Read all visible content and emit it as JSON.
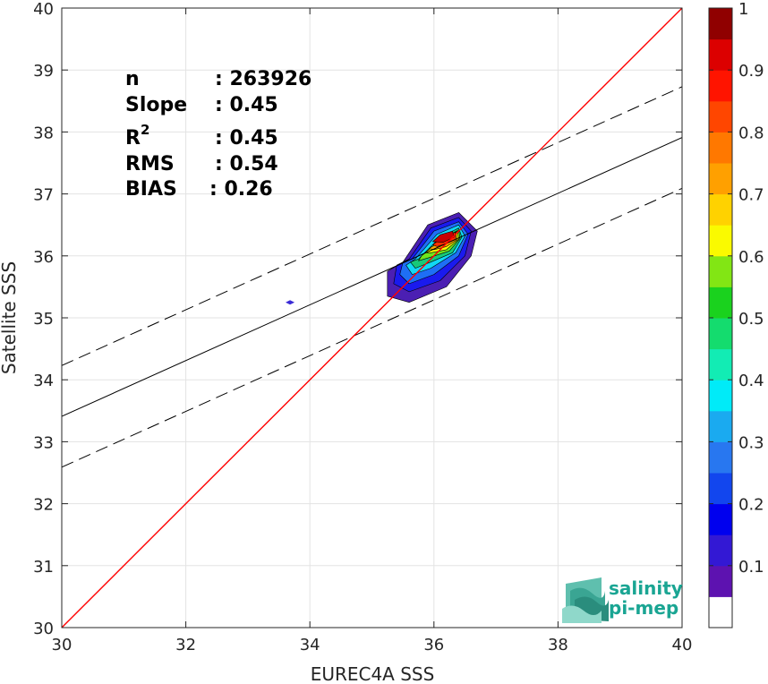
{
  "chart_data": {
    "type": "heatmap",
    "title": "",
    "xlabel": "EUREC4A SSS",
    "ylabel": "Satellite SSS",
    "xlim": [
      30,
      40
    ],
    "ylim": [
      30,
      40
    ],
    "xticks": [
      30,
      32,
      34,
      36,
      38,
      40
    ],
    "yticks": [
      30,
      31,
      32,
      33,
      34,
      35,
      36,
      37,
      38,
      39,
      40
    ],
    "grid": true,
    "stats": [
      {
        "label": "n",
        "value": ": 263926"
      },
      {
        "label": "Slope",
        "value": ": 0.45"
      },
      {
        "label": "R",
        "sup": "2",
        "value": ": 0.45"
      },
      {
        "label": "RMS",
        "value": ": 0.54"
      },
      {
        "label": "BIAS",
        "value": ": 0.26"
      }
    ],
    "identity_line": {
      "color": "#ff0000",
      "points": [
        [
          30,
          30
        ],
        [
          40,
          40
        ]
      ]
    },
    "fit_line": {
      "slope": 0.45,
      "intercept": 19.91,
      "color": "#000000"
    },
    "fit_bounds": {
      "offset": 0.82,
      "style": "dashed",
      "color": "#000000"
    },
    "density_contours": [
      {
        "level": 0.05,
        "color": "#4b1fb3",
        "points": [
          [
            35.5,
            35.9
          ],
          [
            35.9,
            36.5
          ],
          [
            36.4,
            36.7
          ],
          [
            36.7,
            36.4
          ],
          [
            36.6,
            36.0
          ],
          [
            36.2,
            35.5
          ],
          [
            35.6,
            35.25
          ],
          [
            35.25,
            35.35
          ],
          [
            35.25,
            35.75
          ]
        ]
      },
      {
        "level": 0.15,
        "color": "#1a1aee",
        "points": [
          [
            35.6,
            35.95
          ],
          [
            35.95,
            36.45
          ],
          [
            36.4,
            36.62
          ],
          [
            36.6,
            36.4
          ],
          [
            36.5,
            36.0
          ],
          [
            36.1,
            35.6
          ],
          [
            35.6,
            35.42
          ],
          [
            35.35,
            35.55
          ],
          [
            35.4,
            35.85
          ]
        ]
      },
      {
        "level": 0.25,
        "color": "#1e6ff5",
        "points": [
          [
            35.65,
            35.95
          ],
          [
            36.0,
            36.4
          ],
          [
            36.4,
            36.55
          ],
          [
            36.55,
            36.35
          ],
          [
            36.4,
            36.0
          ],
          [
            36.0,
            35.7
          ],
          [
            35.6,
            35.55
          ],
          [
            35.45,
            35.7
          ],
          [
            35.5,
            35.9
          ]
        ]
      },
      {
        "level": 0.35,
        "color": "#11d8f5",
        "points": [
          [
            35.7,
            35.95
          ],
          [
            36.05,
            36.35
          ],
          [
            36.4,
            36.5
          ],
          [
            36.5,
            36.32
          ],
          [
            36.35,
            36.05
          ],
          [
            35.95,
            35.8
          ],
          [
            35.65,
            35.7
          ],
          [
            35.55,
            35.85
          ]
        ]
      },
      {
        "level": 0.45,
        "color": "#17c979",
        "points": [
          [
            35.75,
            35.95
          ],
          [
            36.1,
            36.3
          ],
          [
            36.4,
            36.45
          ],
          [
            36.45,
            36.3
          ],
          [
            36.3,
            36.05
          ],
          [
            35.95,
            35.9
          ],
          [
            35.7,
            35.8
          ],
          [
            35.62,
            35.9
          ]
        ]
      },
      {
        "level": 0.55,
        "color": "#6fe61d",
        "points": [
          [
            35.8,
            36.0
          ],
          [
            36.15,
            36.28
          ],
          [
            36.4,
            36.42
          ],
          [
            36.42,
            36.28
          ],
          [
            36.25,
            36.08
          ],
          [
            35.95,
            35.98
          ],
          [
            35.75,
            35.92
          ]
        ]
      },
      {
        "level": 0.65,
        "color": "#ffff00",
        "points": [
          [
            35.85,
            36.05
          ],
          [
            36.15,
            36.26
          ],
          [
            36.38,
            36.4
          ],
          [
            36.4,
            36.27
          ],
          [
            36.2,
            36.1
          ],
          [
            35.95,
            36.05
          ]
        ]
      },
      {
        "level": 0.75,
        "color": "#ffa500",
        "points": [
          [
            35.92,
            36.12
          ],
          [
            36.15,
            36.25
          ],
          [
            36.36,
            36.38
          ],
          [
            36.37,
            36.26
          ],
          [
            36.2,
            36.15
          ],
          [
            36.0,
            36.1
          ]
        ]
      },
      {
        "level": 0.85,
        "color": "#ff2f00",
        "points": [
          [
            35.98,
            36.18
          ],
          [
            36.15,
            36.3
          ],
          [
            36.34,
            36.38
          ],
          [
            36.35,
            36.27
          ],
          [
            36.2,
            36.2
          ],
          [
            36.05,
            36.15
          ]
        ]
      },
      {
        "level": 0.95,
        "color": "#c80000",
        "points": [
          [
            35.98,
            36.23
          ],
          [
            36.1,
            36.34
          ],
          [
            36.3,
            36.4
          ],
          [
            36.32,
            36.3
          ],
          [
            36.15,
            36.22
          ]
        ]
      }
    ],
    "outlier": {
      "x": 33.68,
      "y": 35.25,
      "color": "#3a2bd6"
    },
    "colorbar": {
      "range": [
        0,
        1
      ],
      "ticks": [
        "0.1",
        "0.2",
        "0.3",
        "0.4",
        "0.5",
        "0.6",
        "0.7",
        "0.8",
        "0.9",
        "1"
      ],
      "colors": [
        "#ffffff",
        "#5d12b0",
        "#3318d4",
        "#0000ee",
        "#1246ee",
        "#2877f0",
        "#1aaaf0",
        "#00ebf8",
        "#12ecb4",
        "#14dc6e",
        "#1ad21e",
        "#82e614",
        "#fafa00",
        "#ffd200",
        "#ffa000",
        "#ff7800",
        "#ff4600",
        "#ff1400",
        "#dc0000",
        "#900000"
      ]
    },
    "logo": {
      "line1": "salinity",
      "line2": "pi-mep"
    }
  }
}
